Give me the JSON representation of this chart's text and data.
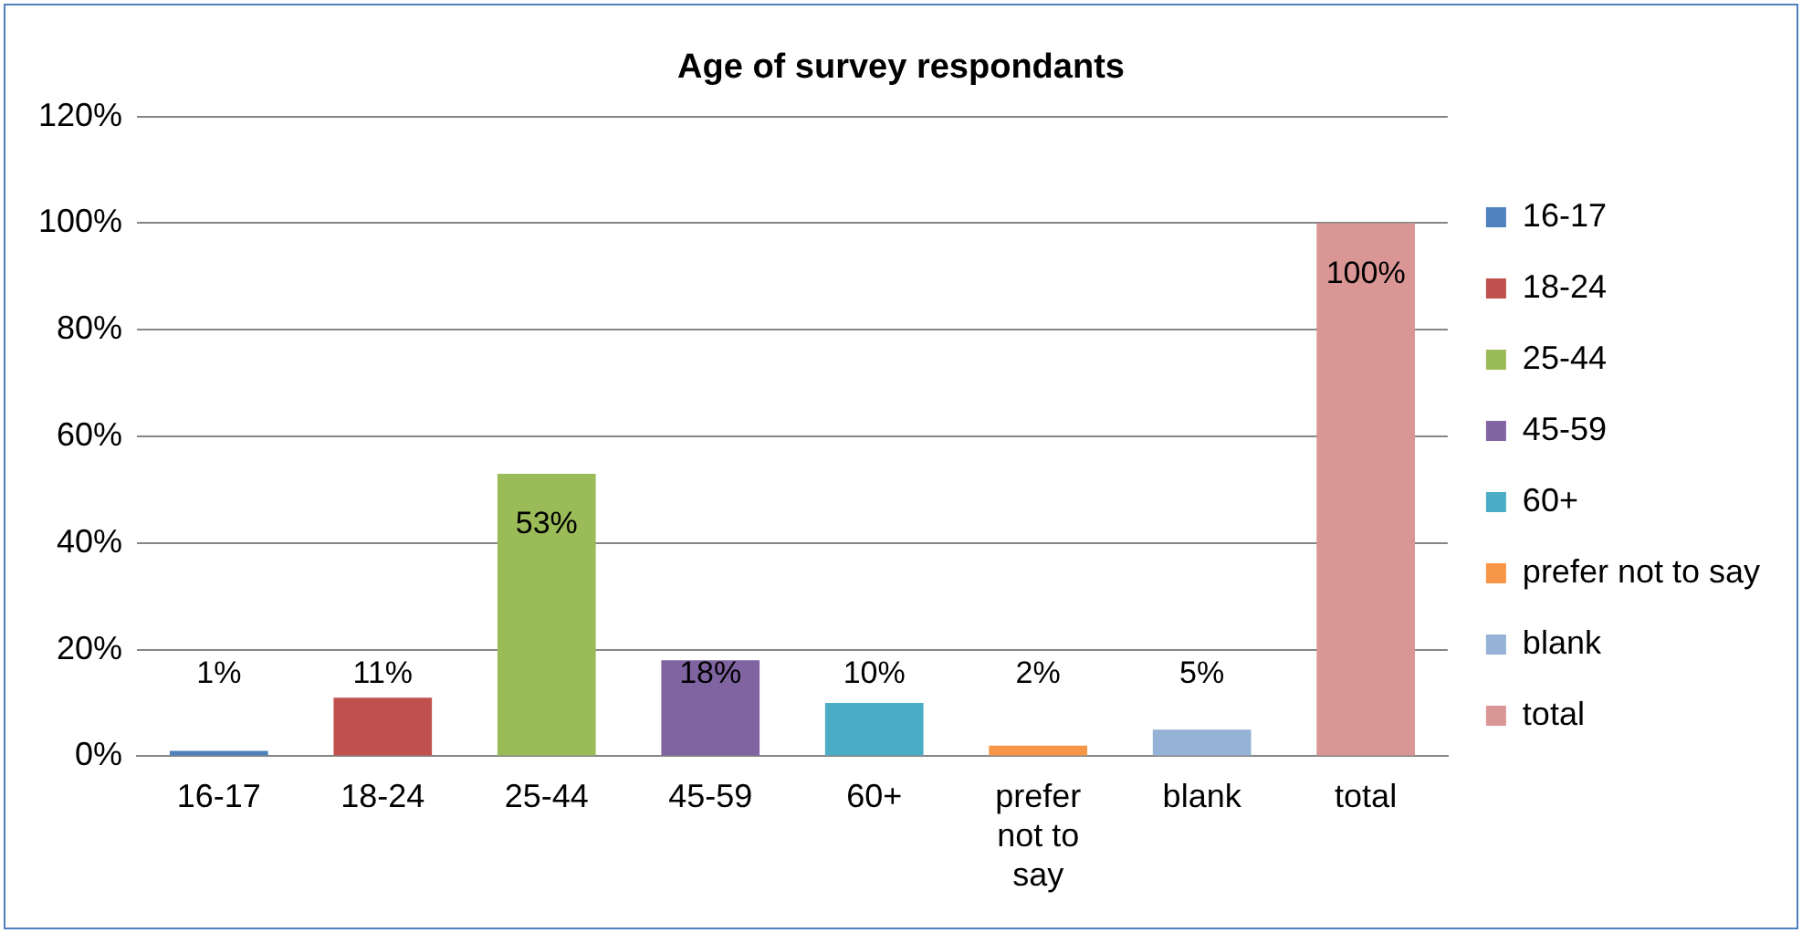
{
  "chart_data": {
    "type": "bar",
    "title": "Age of survey respondants",
    "categories": [
      "16-17",
      "18-24",
      "25-44",
      "45-59",
      "60+",
      "prefer not to say",
      "blank",
      "total"
    ],
    "series": [
      {
        "name": "16-17",
        "color": "#4f81bd",
        "values": [
          1,
          null,
          null,
          null,
          null,
          null,
          null,
          null
        ],
        "value_labels": [
          "1%",
          null,
          null,
          null,
          null,
          null,
          null,
          null
        ]
      },
      {
        "name": "18-24",
        "color": "#c0504d",
        "values": [
          null,
          11,
          null,
          null,
          null,
          null,
          null,
          null
        ],
        "value_labels": [
          null,
          "11%",
          null,
          null,
          null,
          null,
          null,
          null
        ]
      },
      {
        "name": "25-44",
        "color": "#9bbb59",
        "values": [
          null,
          null,
          53,
          null,
          null,
          null,
          null,
          null
        ],
        "value_labels": [
          null,
          null,
          "53%",
          null,
          null,
          null,
          null,
          null
        ]
      },
      {
        "name": "45-59",
        "color": "#8064a2",
        "values": [
          null,
          null,
          null,
          18,
          null,
          null,
          null,
          null
        ],
        "value_labels": [
          null,
          null,
          null,
          "18%",
          null,
          null,
          null,
          null
        ]
      },
      {
        "name": "60+",
        "color": "#4bacc6",
        "values": [
          null,
          null,
          null,
          null,
          10,
          null,
          null,
          null
        ],
        "value_labels": [
          null,
          null,
          null,
          null,
          "10%",
          null,
          null,
          null
        ]
      },
      {
        "name": "prefer not to say",
        "color": "#f79646",
        "values": [
          null,
          null,
          null,
          null,
          null,
          2,
          null,
          null
        ],
        "value_labels": [
          null,
          null,
          null,
          null,
          null,
          "2%",
          null,
          null
        ]
      },
      {
        "name": "blank",
        "color": "#95b3d7",
        "values": [
          null,
          null,
          null,
          null,
          null,
          null,
          5,
          null
        ],
        "value_labels": [
          null,
          null,
          null,
          null,
          null,
          null,
          "5%",
          null
        ]
      },
      {
        "name": "total",
        "color": "#d99694",
        "values": [
          null,
          null,
          null,
          null,
          null,
          null,
          null,
          100
        ],
        "value_labels": [
          null,
          null,
          null,
          null,
          null,
          null,
          null,
          "100%"
        ]
      }
    ],
    "ylim": [
      0,
      120
    ],
    "yticks": [
      {
        "value": 0,
        "label": "0%"
      },
      {
        "value": 20,
        "label": "20%"
      },
      {
        "value": 40,
        "label": "40%"
      },
      {
        "value": 60,
        "label": "60%"
      },
      {
        "value": 80,
        "label": "80%"
      },
      {
        "value": 100,
        "label": "100%"
      },
      {
        "value": 120,
        "label": "120%"
      }
    ],
    "grid": "y",
    "legend": "right"
  }
}
